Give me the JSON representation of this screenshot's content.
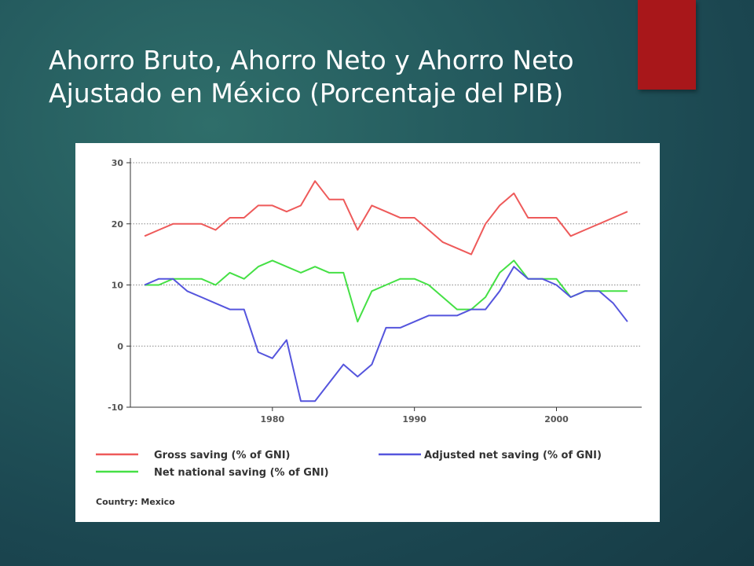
{
  "slide": {
    "title": "Ahorro Bruto, Ahorro Neto y Ahorro Neto Ajustado en México (Porcentaje del PIB)"
  },
  "colors": {
    "accent": "#a8171a",
    "gross": "#ee5a5a",
    "net": "#45e045",
    "adjusted": "#5555dd"
  },
  "chart_data": {
    "type": "line",
    "x": [
      1971,
      1972,
      1973,
      1974,
      1975,
      1976,
      1977,
      1978,
      1979,
      1980,
      1981,
      1982,
      1983,
      1984,
      1985,
      1986,
      1987,
      1988,
      1989,
      1990,
      1991,
      1992,
      1993,
      1994,
      1995,
      1996,
      1997,
      1998,
      1999,
      2000,
      2001,
      2002,
      2003,
      2004,
      2005
    ],
    "series": [
      {
        "name": "Gross saving (% of GNI)",
        "color": "#ee5a5a",
        "legend": "gross",
        "values": [
          18,
          19,
          20,
          20,
          20,
          19,
          21,
          21,
          23,
          23,
          22,
          23,
          27,
          24,
          24,
          19,
          23,
          22,
          21,
          21,
          19,
          17,
          16,
          15,
          20,
          23,
          25,
          21,
          21,
          21,
          18,
          19,
          20,
          21,
          22
        ]
      },
      {
        "name": "Net national saving (% of GNI)",
        "color": "#45e045",
        "legend": "net",
        "values": [
          10,
          10,
          11,
          11,
          11,
          10,
          12,
          11,
          13,
          14,
          13,
          12,
          13,
          12,
          12,
          4,
          9,
          10,
          11,
          11,
          10,
          8,
          6,
          6,
          8,
          12,
          14,
          11,
          11,
          11,
          8,
          9,
          9,
          9,
          9
        ]
      },
      {
        "name": "Adjusted net saving (% of GNI)",
        "color": "#5555dd",
        "legend": "adjusted",
        "values": [
          10,
          11,
          11,
          9,
          8,
          7,
          6,
          6,
          -1,
          -2,
          1,
          -9,
          -9,
          -6,
          -3,
          -5,
          -3,
          3,
          3,
          4,
          5,
          5,
          5,
          6,
          6,
          9,
          13,
          11,
          11,
          10,
          8,
          9,
          9,
          7,
          4
        ]
      }
    ],
    "xticks": [
      1980,
      1990,
      2000
    ],
    "xtick_labels": [
      "1980",
      "1990",
      "2000"
    ],
    "yticks": [
      30,
      20,
      10,
      0,
      -10
    ],
    "ytick_labels": [
      "30",
      "20",
      "10",
      "0",
      "-10"
    ],
    "ylim": [
      -10,
      30
    ],
    "xlim": [
      1970,
      2006
    ],
    "grid": "horizontal dotted",
    "legend_placement": "bottom",
    "title": "",
    "xlabel": "",
    "ylabel": "",
    "footer": "Country: Mexico"
  }
}
